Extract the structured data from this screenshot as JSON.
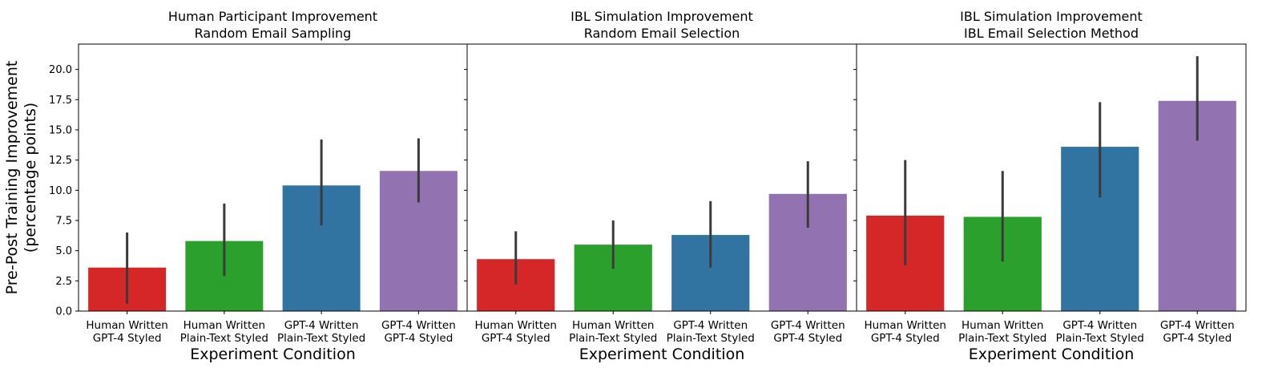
{
  "chart_data": {
    "type": "bar",
    "ylabel": [
      "Pre-Post Training Improvement",
      "(percentage points)"
    ],
    "ylim": [
      0,
      22.1
    ],
    "yticks": [
      0.0,
      2.5,
      5.0,
      7.5,
      10.0,
      12.5,
      15.0,
      17.5,
      20.0
    ],
    "ytick_labels": [
      "0.0",
      "2.5",
      "5.0",
      "7.5",
      "10.0",
      "12.5",
      "15.0",
      "17.5",
      "20.0"
    ],
    "shared_y": true,
    "colors": [
      "#d62728",
      "#2ca02c",
      "#3274a1",
      "#9372b2"
    ],
    "error_color": "#3a3a3a",
    "panels": [
      {
        "title": [
          "Human Participant Improvement",
          "Random Email Sampling"
        ],
        "xlabel": "Experiment Condition",
        "categories": [
          [
            "Human Written",
            "GPT-4 Styled"
          ],
          [
            "Human Written",
            "Plain-Text Styled"
          ],
          [
            "GPT-4 Written",
            "Plain-Text Styled"
          ],
          [
            "GPT-4 Written",
            "GPT-4 Styled"
          ]
        ],
        "values": [
          3.6,
          5.8,
          10.4,
          11.6
        ],
        "ci_low": [
          0.6,
          2.9,
          7.1,
          9.0
        ],
        "ci_high": [
          6.5,
          8.9,
          14.2,
          14.3
        ]
      },
      {
        "title": [
          "IBL Simulation Improvement",
          "Random Email Selection"
        ],
        "xlabel": "Experiment Condition",
        "categories": [
          [
            "Human Written",
            "GPT-4 Styled"
          ],
          [
            "Human Written",
            "Plain-Text Styled"
          ],
          [
            "GPT-4 Written",
            "Plain-Text Styled"
          ],
          [
            "GPT-4 Written",
            "GPT-4 Styled"
          ]
        ],
        "values": [
          4.3,
          5.5,
          6.3,
          9.7
        ],
        "ci_low": [
          2.2,
          3.5,
          3.6,
          6.9
        ],
        "ci_high": [
          6.6,
          7.5,
          9.1,
          12.4
        ]
      },
      {
        "title": [
          "IBL Simulation Improvement",
          "IBL Email Selection Method"
        ],
        "xlabel": "Experiment Condition",
        "categories": [
          [
            "Human Written",
            "GPT-4 Styled"
          ],
          [
            "Human Written",
            "Plain-Text Styled"
          ],
          [
            "GPT-4 Written",
            "Plain-Text Styled"
          ],
          [
            "GPT-4 Written",
            "GPT-4 Styled"
          ]
        ],
        "values": [
          7.9,
          7.8,
          13.6,
          17.4
        ],
        "ci_low": [
          3.8,
          4.1,
          9.4,
          14.1
        ],
        "ci_high": [
          12.5,
          11.6,
          17.3,
          21.1
        ]
      }
    ]
  }
}
